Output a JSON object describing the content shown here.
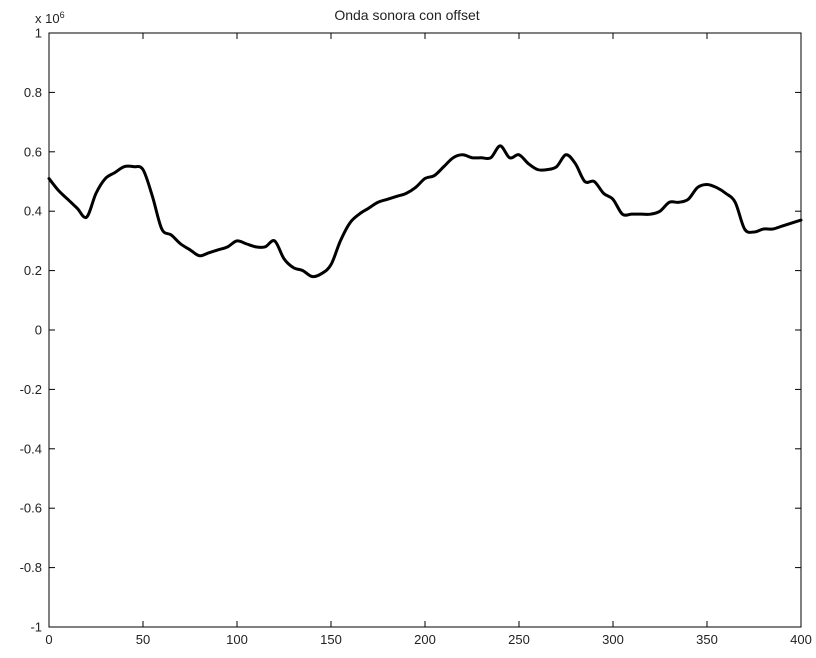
{
  "chart_data": {
    "type": "line",
    "title": "Onda sonora con offset",
    "xlabel": "",
    "ylabel": "",
    "y_multiplier": "x 10",
    "y_multiplier_exponent": "6",
    "xlim": [
      0,
      400
    ],
    "ylim": [
      -1,
      1
    ],
    "x_ticks": [
      0,
      50,
      100,
      150,
      200,
      250,
      300,
      350,
      400
    ],
    "y_ticks": [
      -1,
      -0.8,
      -0.6,
      -0.4,
      -0.2,
      0,
      0.2,
      0.4,
      0.6,
      0.8,
      1
    ],
    "y_tick_labels": [
      "-1",
      "-0.8",
      "-0.6",
      "-0.4",
      "-0.2",
      "0",
      "0.2",
      "0.4",
      "0.6",
      "0.8",
      "1"
    ],
    "grid": false,
    "line_color": "#000000",
    "series": [
      {
        "x": [
          0,
          5,
          10,
          15,
          20,
          25,
          30,
          35,
          40,
          45,
          50,
          55,
          60,
          65,
          70,
          75,
          80,
          85,
          90,
          95,
          100,
          105,
          110,
          115,
          120,
          125,
          130,
          135,
          140,
          145,
          150,
          155,
          160,
          165,
          170,
          175,
          180,
          185,
          190,
          195,
          200,
          205,
          210,
          215,
          220,
          225,
          230,
          235,
          240,
          245,
          250,
          255,
          260,
          265,
          270,
          275,
          280,
          285,
          290,
          295,
          300,
          305,
          310,
          315,
          320,
          325,
          330,
          335,
          340,
          345,
          350,
          355,
          360,
          365,
          370,
          375,
          380,
          385,
          390,
          395,
          400
        ],
        "y": [
          0.51,
          0.47,
          0.44,
          0.41,
          0.38,
          0.46,
          0.51,
          0.53,
          0.55,
          0.55,
          0.54,
          0.45,
          0.34,
          0.32,
          0.29,
          0.27,
          0.25,
          0.26,
          0.27,
          0.28,
          0.3,
          0.29,
          0.28,
          0.28,
          0.3,
          0.24,
          0.21,
          0.2,
          0.18,
          0.19,
          0.22,
          0.3,
          0.36,
          0.39,
          0.41,
          0.43,
          0.44,
          0.45,
          0.46,
          0.48,
          0.51,
          0.52,
          0.55,
          0.58,
          0.59,
          0.58,
          0.58,
          0.58,
          0.62,
          0.58,
          0.59,
          0.56,
          0.54,
          0.54,
          0.55,
          0.59,
          0.56,
          0.5,
          0.5,
          0.46,
          0.44,
          0.39,
          0.39,
          0.39,
          0.39,
          0.4,
          0.43,
          0.43,
          0.44,
          0.48,
          0.49,
          0.48,
          0.46,
          0.43,
          0.34,
          0.33,
          0.34,
          0.34,
          0.35,
          0.36,
          0.37
        ]
      }
    ]
  }
}
